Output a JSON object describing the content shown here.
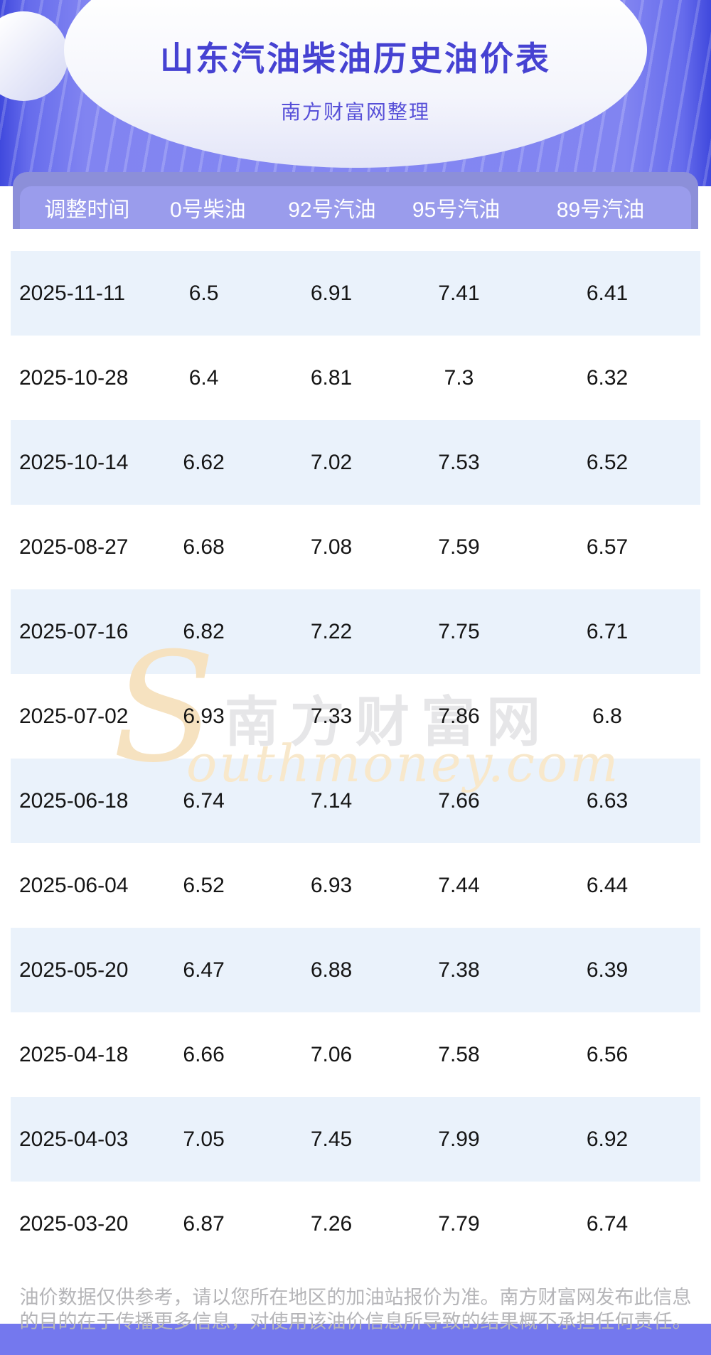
{
  "header": {
    "title": "山东汽油柴油历史油价表",
    "subtitle": "南方财富网整理"
  },
  "table": {
    "columns": [
      "调整时间",
      "0号柴油",
      "92号汽油",
      "95号汽油",
      "89号汽油"
    ],
    "rows": [
      [
        "2025-11-11",
        "6.5",
        "6.91",
        "7.41",
        "6.41"
      ],
      [
        "2025-10-28",
        "6.4",
        "6.81",
        "7.3",
        "6.32"
      ],
      [
        "2025-10-14",
        "6.62",
        "7.02",
        "7.53",
        "6.52"
      ],
      [
        "2025-08-27",
        "6.68",
        "7.08",
        "7.59",
        "6.57"
      ],
      [
        "2025-07-16",
        "6.82",
        "7.22",
        "7.75",
        "6.71"
      ],
      [
        "2025-07-02",
        "6.93",
        "7.33",
        "7.86",
        "6.8"
      ],
      [
        "2025-06-18",
        "6.74",
        "7.14",
        "7.66",
        "6.63"
      ],
      [
        "2025-06-04",
        "6.52",
        "6.93",
        "7.44",
        "6.44"
      ],
      [
        "2025-05-20",
        "6.47",
        "6.88",
        "7.38",
        "6.39"
      ],
      [
        "2025-04-18",
        "6.66",
        "7.06",
        "7.58",
        "6.56"
      ],
      [
        "2025-04-03",
        "7.05",
        "7.45",
        "7.99",
        "6.92"
      ],
      [
        "2025-03-20",
        "6.87",
        "7.26",
        "7.79",
        "6.74"
      ]
    ]
  },
  "watermark": {
    "s": "S",
    "cn": "南方财富网",
    "en": "outhmoney.com"
  },
  "footer": {
    "disclaimer": "油价数据仅供参考，请以您所在地区的加油站报价为准。南方财富网发布此信息的目的在于传播更多信息，对使用该油价信息所导致的结果概不承担任何责任。"
  },
  "colors": {
    "hero_background": "#8487f2",
    "hero_edge": "#4049dd",
    "table_header_bg": "#9a9cec",
    "table_backdrop_bg": "#8c8fd9",
    "row_alt_bg": "#eaf2fb",
    "title_color": "#4642d2",
    "subtitle_color": "#5750d8",
    "footer_bar": "#7478ee",
    "footer_text": "#b5b5b8",
    "watermark_orange": "#f6e2c0",
    "watermark_gray": "#e6e6e8"
  }
}
